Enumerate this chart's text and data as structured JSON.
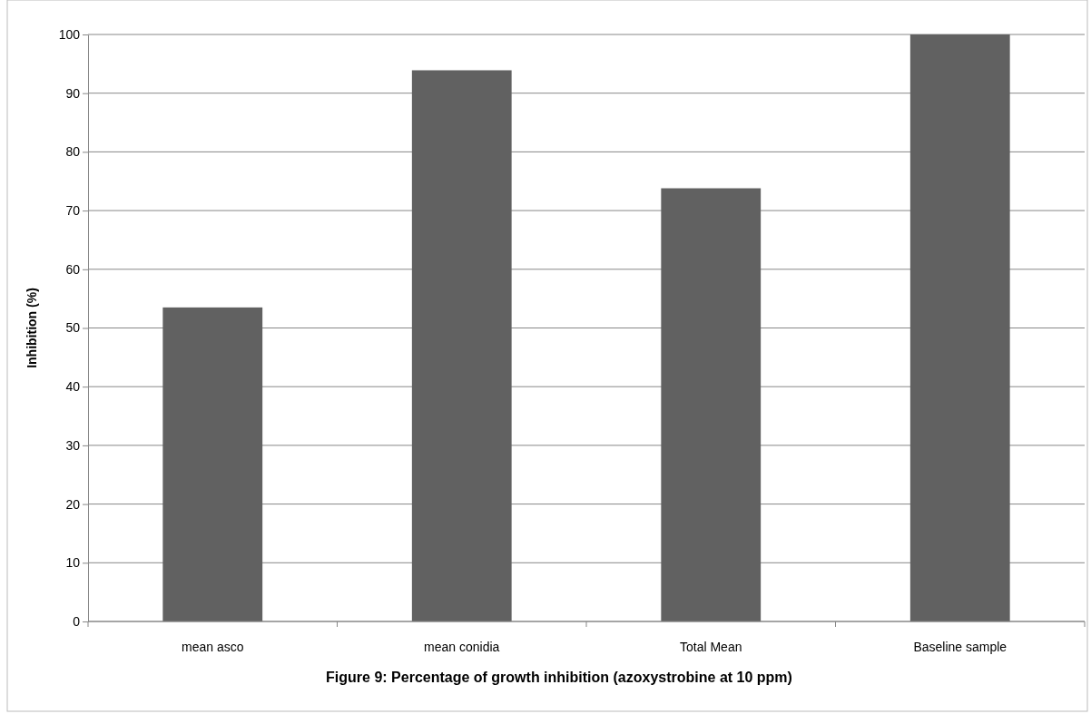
{
  "chart_data": {
    "type": "bar",
    "ylabel": "Inhibition  (%)",
    "categories": [
      "mean asco",
      "mean conidia",
      "Total Mean",
      "Baseline sample"
    ],
    "values": [
      53.5,
      93.9,
      73.8,
      100
    ],
    "color": "#616161",
    "ylim": [
      0,
      100
    ],
    "yticks": [
      0,
      10,
      20,
      30,
      40,
      50,
      60,
      70,
      80,
      90,
      100
    ],
    "grid": "y",
    "annotations": [
      "Figure 9: Percentage of growth inhibition (azoxystrobine at 10 ppm)"
    ]
  }
}
